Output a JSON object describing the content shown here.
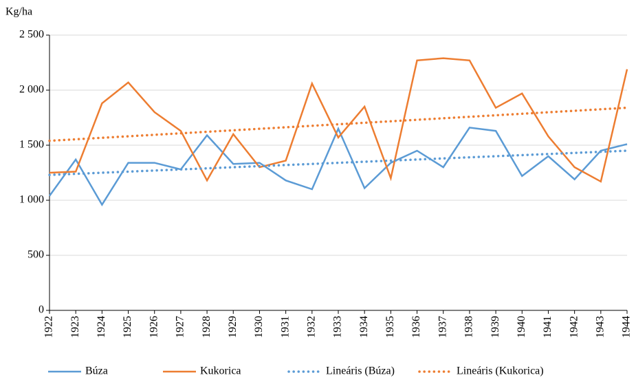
{
  "chart_data": {
    "type": "line",
    "y_label": "Kg/ha",
    "x": [
      1922,
      1923,
      1924,
      1925,
      1926,
      1927,
      1928,
      1929,
      1930,
      1931,
      1932,
      1933,
      1934,
      1935,
      1936,
      1937,
      1938,
      1939,
      1940,
      1941,
      1942,
      1943,
      1944
    ],
    "xlim": [
      1922,
      1944
    ],
    "xticks": [
      1922,
      1923,
      1924,
      1925,
      1926,
      1927,
      1928,
      1929,
      1930,
      1931,
      1932,
      1933,
      1934,
      1935,
      1936,
      1937,
      1938,
      1939,
      1940,
      1941,
      1942,
      1943,
      1944
    ],
    "ylim": [
      0,
      2500
    ],
    "yticks": [
      0,
      500,
      {
        "value": 1000,
        "label": "1 000"
      },
      {
        "value": 1500,
        "label": "1 500"
      },
      {
        "value": 2000,
        "label": "2 000"
      },
      {
        "value": 2500,
        "label": "2 500"
      }
    ],
    "grid": true,
    "legend": "bottom",
    "series": [
      {
        "name": "Búza",
        "color": "#5b9bd5",
        "style": "solid",
        "values": [
          1040,
          1370,
          960,
          1340,
          1340,
          1280,
          1590,
          1330,
          1340,
          1180,
          1100,
          1650,
          1110,
          1340,
          1450,
          1300,
          1660,
          1630,
          1220,
          1400,
          1190,
          1450,
          1510
        ]
      },
      {
        "name": "Kukorica",
        "color": "#ed7d31",
        "style": "solid",
        "values": [
          1250,
          1260,
          1880,
          2070,
          1800,
          1630,
          1180,
          1600,
          1300,
          1360,
          2060,
          1570,
          1850,
          1200,
          2270,
          2290,
          2270,
          1840,
          1970,
          1580,
          1300,
          1170,
          2190
        ]
      },
      {
        "name": "Lineáris (Búza)",
        "color": "#5b9bd5",
        "style": "dotted",
        "x": [
          1922,
          1944
        ],
        "values": [
          1230,
          1450
        ]
      },
      {
        "name": "Lineáris (Kukorica)",
        "color": "#ed7d31",
        "style": "dotted",
        "x": [
          1922,
          1944
        ],
        "values": [
          1540,
          1840
        ]
      }
    ]
  }
}
